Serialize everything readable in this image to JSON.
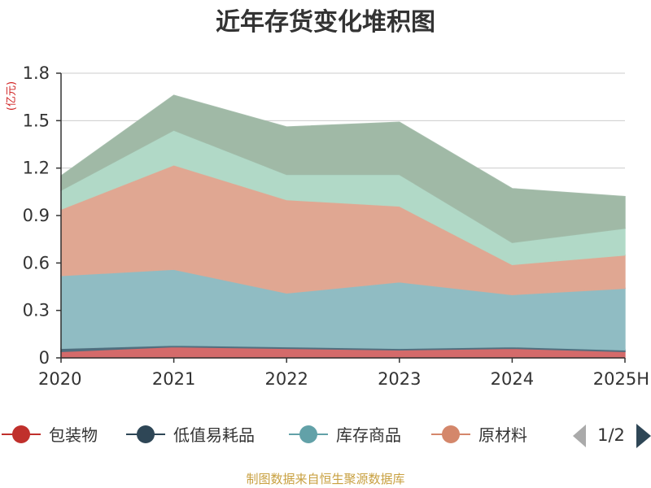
{
  "chart_data": {
    "type": "area",
    "stacked": true,
    "title": "近年存货变化堆积图",
    "unit_label": "(亿元)",
    "categories": [
      "2020",
      "2021",
      "2022",
      "2023",
      "2024",
      "2025H"
    ],
    "ylim": [
      0,
      1.8
    ],
    "yticks": [
      "0",
      "0.3",
      "0.6",
      "0.9",
      "1.2",
      "1.5",
      "1.8"
    ],
    "grid": true,
    "series": [
      {
        "name": "包装物",
        "color": "#d46a6a",
        "values": [
          0.04,
          0.07,
          0.06,
          0.05,
          0.06,
          0.04
        ]
      },
      {
        "name": "低值易耗品",
        "color": "#4f6e7e",
        "values": [
          0.02,
          0.01,
          0.01,
          0.01,
          0.01,
          0.01
        ]
      },
      {
        "name": "库存商品",
        "color": "#90bcc3",
        "values": [
          0.46,
          0.48,
          0.34,
          0.42,
          0.33,
          0.39
        ]
      },
      {
        "name": "原材料",
        "color": "#e0a792",
        "values": [
          0.42,
          0.66,
          0.59,
          0.48,
          0.19,
          0.21
        ]
      },
      {
        "name": "",
        "color": "#b1d9c7",
        "values": [
          0.12,
          0.22,
          0.16,
          0.2,
          0.14,
          0.17
        ]
      },
      {
        "name": "",
        "color": "#a0b9a6",
        "values": [
          0.09,
          0.22,
          0.3,
          0.33,
          0.34,
          0.2
        ]
      }
    ],
    "legend": {
      "placement": "bottom",
      "items": [
        {
          "label": "包装物",
          "color": "#c0302c"
        },
        {
          "label": "低值易耗品",
          "color": "#2e4656"
        },
        {
          "label": "库存商品",
          "color": "#62a1a8"
        },
        {
          "label": "原材料",
          "color": "#d4876b"
        }
      ],
      "page": "1/2",
      "prev_icon": "triangle-left-icon",
      "next_icon": "triangle-right-icon"
    },
    "source": "制图数据来自恒生聚源数据库"
  }
}
